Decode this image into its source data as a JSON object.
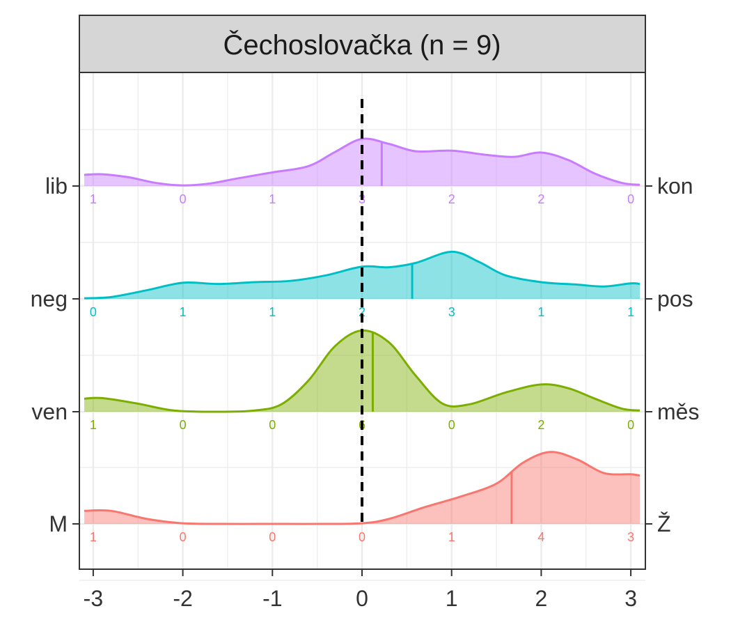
{
  "chart_data": {
    "type": "ridgeline",
    "title": "Čechoslovačka (n = 9)",
    "xlim": [
      -3.1,
      3.1
    ],
    "x_ticks": [
      -3,
      -2,
      -1,
      0,
      1,
      2,
      3
    ],
    "x_tick_labels": [
      "-3",
      "-2",
      "-1",
      "0",
      "1",
      "2",
      "3"
    ],
    "reference_line": {
      "x": 0,
      "style": "dashed",
      "color": "#000000"
    },
    "grid": true,
    "count_positions": [
      -3,
      -2,
      -1,
      0,
      1,
      2,
      3
    ],
    "rows": [
      {
        "left_label": "lib",
        "right_label": "kon",
        "color": "#C77CFF",
        "mean": 0.22,
        "counts": [
          "1",
          "0",
          "1",
          "3",
          "2",
          "2",
          "0"
        ],
        "density": [
          [
            -3.1,
            0.18
          ],
          [
            -2.9,
            0.19
          ],
          [
            -2.6,
            0.14
          ],
          [
            -2.3,
            0.05
          ],
          [
            -2.0,
            0.01
          ],
          [
            -1.7,
            0.04
          ],
          [
            -1.4,
            0.12
          ],
          [
            -1.0,
            0.22
          ],
          [
            -0.6,
            0.32
          ],
          [
            -0.3,
            0.55
          ],
          [
            0.0,
            0.76
          ],
          [
            0.3,
            0.68
          ],
          [
            0.6,
            0.56
          ],
          [
            1.0,
            0.57
          ],
          [
            1.4,
            0.5
          ],
          [
            1.7,
            0.47
          ],
          [
            2.0,
            0.54
          ],
          [
            2.3,
            0.42
          ],
          [
            2.6,
            0.2
          ],
          [
            2.9,
            0.05
          ],
          [
            3.1,
            0.02
          ]
        ]
      },
      {
        "left_label": "neg",
        "right_label": "pos",
        "color": "#00BFC4",
        "mean": 0.56,
        "counts": [
          "0",
          "1",
          "1",
          "2",
          "3",
          "1",
          "1"
        ],
        "density": [
          [
            -3.1,
            0.01
          ],
          [
            -2.8,
            0.03
          ],
          [
            -2.4,
            0.14
          ],
          [
            -2.0,
            0.26
          ],
          [
            -1.6,
            0.24
          ],
          [
            -1.2,
            0.27
          ],
          [
            -0.8,
            0.29
          ],
          [
            -0.4,
            0.38
          ],
          [
            0.0,
            0.52
          ],
          [
            0.3,
            0.51
          ],
          [
            0.6,
            0.58
          ],
          [
            1.0,
            0.76
          ],
          [
            1.3,
            0.6
          ],
          [
            1.6,
            0.38
          ],
          [
            2.0,
            0.27
          ],
          [
            2.4,
            0.23
          ],
          [
            2.7,
            0.2
          ],
          [
            3.0,
            0.25
          ],
          [
            3.1,
            0.24
          ]
        ]
      },
      {
        "left_label": "ven",
        "right_label": "měs",
        "color": "#7CAE00",
        "mean": 0.12,
        "counts": [
          "1",
          "0",
          "0",
          "6",
          "0",
          "2",
          "0"
        ],
        "density": [
          [
            -3.1,
            0.21
          ],
          [
            -2.9,
            0.22
          ],
          [
            -2.5,
            0.13
          ],
          [
            -2.1,
            0.02
          ],
          [
            -1.6,
            0.0
          ],
          [
            -1.2,
            0.02
          ],
          [
            -0.9,
            0.12
          ],
          [
            -0.6,
            0.5
          ],
          [
            -0.3,
            1.06
          ],
          [
            0.0,
            1.31
          ],
          [
            0.3,
            1.12
          ],
          [
            0.6,
            0.58
          ],
          [
            0.9,
            0.13
          ],
          [
            1.2,
            0.12
          ],
          [
            1.6,
            0.31
          ],
          [
            2.0,
            0.44
          ],
          [
            2.3,
            0.38
          ],
          [
            2.6,
            0.21
          ],
          [
            2.9,
            0.05
          ],
          [
            3.1,
            0.02
          ]
        ]
      },
      {
        "left_label": "M",
        "right_label": "Ž",
        "color": "#F8766D",
        "mean": 1.67,
        "counts": [
          "1",
          "0",
          "0",
          "0",
          "1",
          "4",
          "3"
        ],
        "density": [
          [
            -3.1,
            0.21
          ],
          [
            -2.8,
            0.21
          ],
          [
            -2.4,
            0.08
          ],
          [
            -2.0,
            0.01
          ],
          [
            -1.5,
            0.0
          ],
          [
            -1.0,
            0.0
          ],
          [
            -0.5,
            0.0
          ],
          [
            0.0,
            0.01
          ],
          [
            0.3,
            0.08
          ],
          [
            0.7,
            0.27
          ],
          [
            1.1,
            0.44
          ],
          [
            1.5,
            0.65
          ],
          [
            1.8,
            0.99
          ],
          [
            2.1,
            1.16
          ],
          [
            2.4,
            1.04
          ],
          [
            2.7,
            0.82
          ],
          [
            3.0,
            0.8
          ],
          [
            3.1,
            0.78
          ]
        ]
      }
    ]
  }
}
